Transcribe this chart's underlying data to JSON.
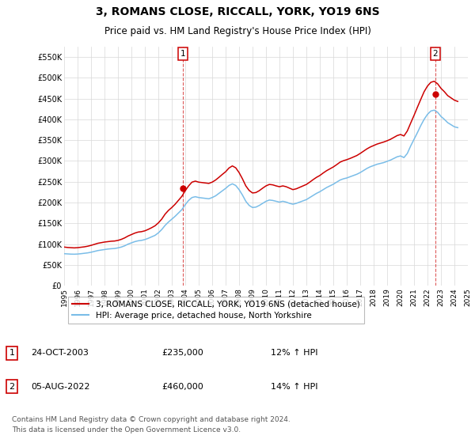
{
  "title": "3, ROMANS CLOSE, RICCALL, YORK, YO19 6NS",
  "subtitle": "Price paid vs. HM Land Registry's House Price Index (HPI)",
  "title_fontsize": 10,
  "subtitle_fontsize": 8.5,
  "background_color": "#ffffff",
  "plot_bg_color": "#ffffff",
  "grid_color": "#d8d8d8",
  "ylim": [
    0,
    575000
  ],
  "yticks": [
    0,
    50000,
    100000,
    150000,
    200000,
    250000,
    300000,
    350000,
    400000,
    450000,
    500000,
    550000
  ],
  "ytick_labels": [
    "£0",
    "£50K",
    "£100K",
    "£150K",
    "£200K",
    "£250K",
    "£300K",
    "£350K",
    "£400K",
    "£450K",
    "£500K",
    "£550K"
  ],
  "hpi_color": "#7abde8",
  "price_color": "#cc0000",
  "marker_color": "#cc0000",
  "dashed_line_color": "#cc0000",
  "sale1_date_num": 2003.82,
  "sale1_price": 235000,
  "sale1_label": "1",
  "sale2_date_num": 2022.59,
  "sale2_price": 460000,
  "sale2_label": "2",
  "legend_entries": [
    "3, ROMANS CLOSE, RICCALL, YORK, YO19 6NS (detached house)",
    "HPI: Average price, detached house, North Yorkshire"
  ],
  "table_rows": [
    {
      "num": "1",
      "date": "24-OCT-2003",
      "price": "£235,000",
      "hpi": "12% ↑ HPI"
    },
    {
      "num": "2",
      "date": "05-AUG-2022",
      "price": "£460,000",
      "hpi": "14% ↑ HPI"
    }
  ],
  "footer": "Contains HM Land Registry data © Crown copyright and database right 2024.\nThis data is licensed under the Open Government Licence v3.0.",
  "hpi_data": {
    "dates": [
      1995.0,
      1995.25,
      1995.5,
      1995.75,
      1996.0,
      1996.25,
      1996.5,
      1996.75,
      1997.0,
      1997.25,
      1997.5,
      1997.75,
      1998.0,
      1998.25,
      1998.5,
      1998.75,
      1999.0,
      1999.25,
      1999.5,
      1999.75,
      2000.0,
      2000.25,
      2000.5,
      2000.75,
      2001.0,
      2001.25,
      2001.5,
      2001.75,
      2002.0,
      2002.25,
      2002.5,
      2002.75,
      2003.0,
      2003.25,
      2003.5,
      2003.75,
      2004.0,
      2004.25,
      2004.5,
      2004.75,
      2005.0,
      2005.25,
      2005.5,
      2005.75,
      2006.0,
      2006.25,
      2006.5,
      2006.75,
      2007.0,
      2007.25,
      2007.5,
      2007.75,
      2008.0,
      2008.25,
      2008.5,
      2008.75,
      2009.0,
      2009.25,
      2009.5,
      2009.75,
      2010.0,
      2010.25,
      2010.5,
      2010.75,
      2011.0,
      2011.25,
      2011.5,
      2011.75,
      2012.0,
      2012.25,
      2012.5,
      2012.75,
      2013.0,
      2013.25,
      2013.5,
      2013.75,
      2014.0,
      2014.25,
      2014.5,
      2014.75,
      2015.0,
      2015.25,
      2015.5,
      2015.75,
      2016.0,
      2016.25,
      2016.5,
      2016.75,
      2017.0,
      2017.25,
      2017.5,
      2017.75,
      2018.0,
      2018.25,
      2018.5,
      2018.75,
      2019.0,
      2019.25,
      2019.5,
      2019.75,
      2020.0,
      2020.25,
      2020.5,
      2020.75,
      2021.0,
      2021.25,
      2021.5,
      2021.75,
      2022.0,
      2022.25,
      2022.5,
      2022.75,
      2023.0,
      2023.25,
      2023.5,
      2023.75,
      2024.0,
      2024.25
    ],
    "values": [
      77000,
      76500,
      76000,
      75800,
      76200,
      77000,
      78000,
      79000,
      80500,
      82500,
      84500,
      85800,
      87000,
      88200,
      89000,
      89500,
      91000,
      93000,
      96000,
      100000,
      103000,
      106000,
      108000,
      109000,
      111000,
      114000,
      117500,
      121000,
      127000,
      135000,
      145000,
      153000,
      160000,
      167000,
      175000,
      183000,
      195000,
      205000,
      212000,
      214000,
      212000,
      211000,
      210000,
      209000,
      212000,
      216000,
      222000,
      228000,
      234000,
      241000,
      245000,
      241000,
      231000,
      218000,
      203000,
      193000,
      188000,
      189000,
      193000,
      198000,
      203000,
      206000,
      205000,
      203000,
      201000,
      203000,
      201000,
      198000,
      196000,
      198000,
      201000,
      204000,
      207000,
      212000,
      217000,
      222000,
      226000,
      231000,
      236000,
      240000,
      244000,
      249000,
      254000,
      257000,
      259000,
      262000,
      265000,
      268000,
      272000,
      277000,
      282000,
      286000,
      289000,
      292000,
      294000,
      296000,
      299000,
      302000,
      306000,
      310000,
      312000,
      308000,
      318000,
      336000,
      352000,
      368000,
      385000,
      400000,
      412000,
      420000,
      422000,
      417000,
      407000,
      400000,
      392000,
      387000,
      382000,
      380000
    ]
  },
  "price_data": {
    "dates": [
      1995.0,
      1995.25,
      1995.5,
      1995.75,
      1996.0,
      1996.25,
      1996.5,
      1996.75,
      1997.0,
      1997.25,
      1997.5,
      1997.75,
      1998.0,
      1998.25,
      1998.5,
      1998.75,
      1999.0,
      1999.25,
      1999.5,
      1999.75,
      2000.0,
      2000.25,
      2000.5,
      2000.75,
      2001.0,
      2001.25,
      2001.5,
      2001.75,
      2002.0,
      2002.25,
      2002.5,
      2002.75,
      2003.0,
      2003.25,
      2003.5,
      2003.75,
      2004.0,
      2004.25,
      2004.5,
      2004.75,
      2005.0,
      2005.25,
      2005.5,
      2005.75,
      2006.0,
      2006.25,
      2006.5,
      2006.75,
      2007.0,
      2007.25,
      2007.5,
      2007.75,
      2008.0,
      2008.25,
      2008.5,
      2008.75,
      2009.0,
      2009.25,
      2009.5,
      2009.75,
      2010.0,
      2010.25,
      2010.5,
      2010.75,
      2011.0,
      2011.25,
      2011.5,
      2011.75,
      2012.0,
      2012.25,
      2012.5,
      2012.75,
      2013.0,
      2013.25,
      2013.5,
      2013.75,
      2014.0,
      2014.25,
      2014.5,
      2014.75,
      2015.0,
      2015.25,
      2015.5,
      2015.75,
      2016.0,
      2016.25,
      2016.5,
      2016.75,
      2017.0,
      2017.25,
      2017.5,
      2017.75,
      2018.0,
      2018.25,
      2018.5,
      2018.75,
      2019.0,
      2019.25,
      2019.5,
      2019.75,
      2020.0,
      2020.25,
      2020.5,
      2020.75,
      2021.0,
      2021.25,
      2021.5,
      2021.75,
      2022.0,
      2022.25,
      2022.5,
      2022.75,
      2023.0,
      2023.25,
      2023.5,
      2023.75,
      2024.0,
      2024.25
    ],
    "values": [
      93000,
      92000,
      91500,
      91000,
      91500,
      92500,
      93500,
      95000,
      97000,
      99500,
      102000,
      103500,
      105000,
      106000,
      107000,
      107500,
      109000,
      111500,
      115000,
      119500,
      123000,
      126500,
      129000,
      130000,
      132000,
      135500,
      139500,
      144000,
      151000,
      160000,
      172000,
      181000,
      188000,
      196000,
      205500,
      215000,
      228500,
      240000,
      249000,
      251500,
      249000,
      248000,
      247000,
      246000,
      249000,
      254000,
      260500,
      267500,
      274000,
      283000,
      288000,
      283500,
      272000,
      257000,
      240000,
      229000,
      223000,
      224000,
      228500,
      234500,
      240000,
      243500,
      242500,
      240000,
      238000,
      240000,
      238000,
      234500,
      231000,
      233000,
      236500,
      240000,
      243500,
      249000,
      255000,
      260500,
      265000,
      271000,
      276500,
      281000,
      285500,
      291000,
      297000,
      300500,
      303000,
      306000,
      309500,
      313000,
      318000,
      323500,
      329000,
      333500,
      337000,
      340500,
      343000,
      345500,
      348500,
      352000,
      356500,
      361000,
      363500,
      360000,
      372000,
      391000,
      409500,
      429000,
      448000,
      466500,
      480000,
      489000,
      491500,
      485500,
      474500,
      466500,
      457000,
      451500,
      446000,
      443000
    ]
  },
  "xlim": [
    1995,
    2025
  ],
  "xtick_years": [
    1995,
    1996,
    1997,
    1998,
    1999,
    2000,
    2001,
    2002,
    2003,
    2004,
    2005,
    2006,
    2007,
    2008,
    2009,
    2010,
    2011,
    2012,
    2013,
    2014,
    2015,
    2016,
    2017,
    2018,
    2019,
    2020,
    2021,
    2022,
    2023,
    2024,
    2025
  ]
}
